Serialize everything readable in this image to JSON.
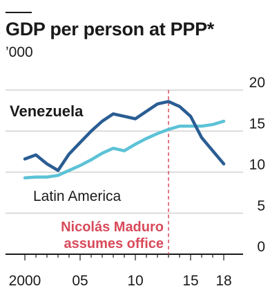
{
  "header": {
    "title": "GDP per person at PPP*",
    "subtitle": "’000"
  },
  "annotation": {
    "line1": "Nicolás Maduro",
    "line2": "assumes office",
    "x": 2013,
    "color": "#d84a5a"
  },
  "colors": {
    "venezuela": "#2a5d93",
    "latin_america": "#5cc2d6",
    "grid": "#c9c9c9",
    "axis": "#1a1a1a"
  },
  "chart_data": {
    "type": "line",
    "title": "GDP per person at PPP*",
    "ylabel": "’000",
    "xlabel": "",
    "xlim": [
      2000,
      2018
    ],
    "ylim": [
      0,
      20
    ],
    "y_ticks": [
      "0",
      "5",
      "10",
      "15",
      "20"
    ],
    "x_ticks": [
      {
        "value": 2000,
        "label": "2000"
      },
      {
        "value": 2005,
        "label": "05"
      },
      {
        "value": 2010,
        "label": "10"
      },
      {
        "value": 2015,
        "label": "15"
      },
      {
        "value": 2018,
        "label": "18"
      }
    ],
    "grid": true,
    "x": [
      2000,
      2001,
      2002,
      2003,
      2004,
      2005,
      2006,
      2007,
      2008,
      2009,
      2010,
      2011,
      2012,
      2013,
      2014,
      2015,
      2016,
      2017,
      2018
    ],
    "series": [
      {
        "name": "Venezuela",
        "values": [
          11.6,
          12.1,
          11.0,
          10.2,
          12.2,
          13.6,
          15.0,
          16.2,
          17.1,
          16.8,
          16.5,
          17.4,
          18.3,
          18.6,
          18.0,
          16.8,
          14.2,
          12.6,
          11.0
        ]
      },
      {
        "name": "Latin America",
        "values": [
          9.3,
          9.4,
          9.4,
          9.6,
          10.2,
          10.8,
          11.5,
          12.3,
          12.9,
          12.6,
          13.4,
          14.1,
          14.7,
          15.2,
          15.6,
          15.6,
          15.6,
          15.8,
          16.2
        ]
      }
    ]
  }
}
